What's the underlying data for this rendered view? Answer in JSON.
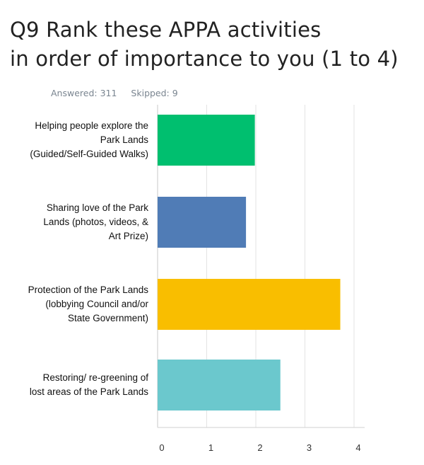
{
  "header": {
    "title_line1": "Q9 Rank these APPA activities",
    "title_line2": "in order of importance to you (1 to 4)",
    "answered": "Answered: 311",
    "skipped": "Skipped: 9"
  },
  "chart_data": {
    "type": "bar",
    "orientation": "horizontal",
    "categories": [
      [
        "Helping people explore the",
        "Park Lands",
        "(Guided/Self-Guided Walks)"
      ],
      [
        "Sharing love of the Park",
        "Lands (photos, videos, &",
        "Art Prize)"
      ],
      [
        "Protection of the Park Lands",
        "(lobbying Council and/or",
        "State Government)"
      ],
      [
        "Restoring/ re-greening of",
        "lost areas of the Park Lands"
      ]
    ],
    "values": [
      1.98,
      1.8,
      3.72,
      2.5
    ],
    "colors": [
      "#00bf6f",
      "#507cb6",
      "#f9be00",
      "#6bc8cd"
    ],
    "xlim": [
      0,
      4
    ],
    "ticks": [
      "0",
      "1",
      "2",
      "3",
      "4"
    ],
    "grid": true,
    "title": "Q9 Rank these APPA activities in order of importance to you (1 to 4)",
    "xlabel": "",
    "ylabel": ""
  }
}
